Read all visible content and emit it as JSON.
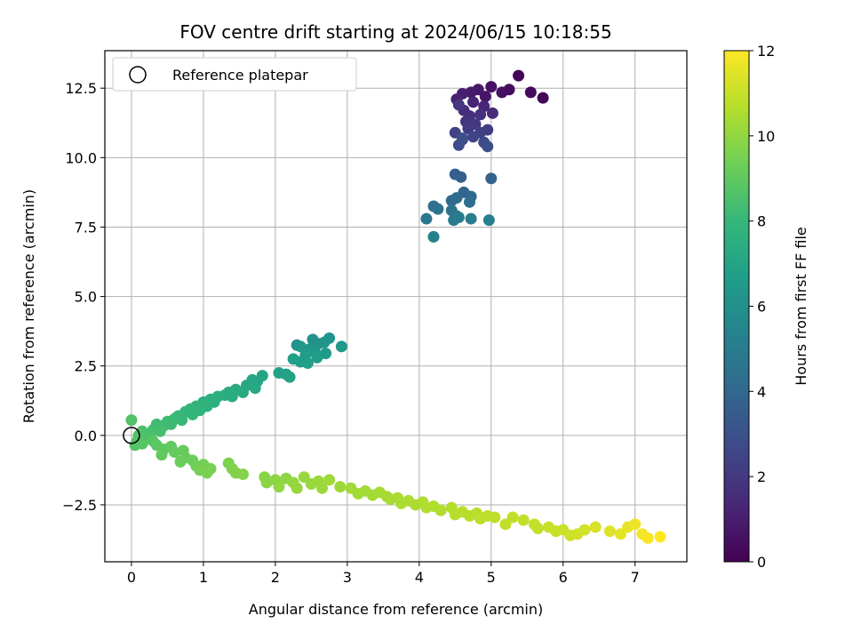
{
  "chart_data": {
    "type": "scatter",
    "title": "FOV centre drift starting at 2024/06/15 10:18:55",
    "xlabel": "Angular distance from reference (arcmin)",
    "ylabel": "Rotation from reference (arcmin)",
    "xlim": [
      -0.37,
      7.72
    ],
    "ylim": [
      -4.55,
      13.85
    ],
    "xticks": [
      0,
      1,
      2,
      3,
      4,
      5,
      6,
      7
    ],
    "xtick_labels": [
      "0",
      "1",
      "2",
      "3",
      "4",
      "5",
      "6",
      "7"
    ],
    "yticks": [
      -2.5,
      0.0,
      2.5,
      5.0,
      7.5,
      10.0,
      12.5
    ],
    "ytick_labels": [
      "−2.5",
      "0.0",
      "2.5",
      "5.0",
      "7.5",
      "10.0",
      "12.5"
    ],
    "grid": true,
    "legend": {
      "position": "top-left",
      "entries": [
        "Reference platepar"
      ]
    },
    "reference_point": {
      "x": 0.0,
      "y": 0.0
    },
    "colorbar": {
      "label": "Hours from first FF file",
      "range": [
        0,
        12
      ],
      "ticks": [
        0,
        2,
        4,
        6,
        8,
        10,
        12
      ],
      "tick_labels": [
        "0",
        "2",
        "4",
        "6",
        "8",
        "10",
        "12"
      ],
      "colormap": "viridis",
      "colors": [
        "#440154",
        "#482878",
        "#3e4989",
        "#31688e",
        "#26828e",
        "#1f9e89",
        "#35b779",
        "#6ece58",
        "#b5de2b",
        "#fde725"
      ]
    },
    "points": [
      [
        5.38,
        12.95,
        0.1
      ],
      [
        5.72,
        12.15,
        0.2
      ],
      [
        5.55,
        12.35,
        0.3
      ],
      [
        5.25,
        12.45,
        0.4
      ],
      [
        5.15,
        12.35,
        0.5
      ],
      [
        5.0,
        12.55,
        0.6
      ],
      [
        4.92,
        12.2,
        0.7
      ],
      [
        4.82,
        12.45,
        0.8
      ],
      [
        4.72,
        12.35,
        0.9
      ],
      [
        4.6,
        12.3,
        1.0
      ],
      [
        4.52,
        12.1,
        1.1
      ],
      [
        4.75,
        12.0,
        1.2
      ],
      [
        4.9,
        11.85,
        1.3
      ],
      [
        5.02,
        11.6,
        1.4
      ],
      [
        4.62,
        11.7,
        1.5
      ],
      [
        4.7,
        11.5,
        1.6
      ],
      [
        4.85,
        11.55,
        1.7
      ],
      [
        4.65,
        11.3,
        1.8
      ],
      [
        4.55,
        11.9,
        1.9
      ],
      [
        4.78,
        11.2,
        2.0
      ],
      [
        4.68,
        11.05,
        2.1
      ],
      [
        4.95,
        11.0,
        2.2
      ],
      [
        4.85,
        10.9,
        2.3
      ],
      [
        4.5,
        10.9,
        2.4
      ],
      [
        4.75,
        10.75,
        2.5
      ],
      [
        4.6,
        10.65,
        2.6
      ],
      [
        4.9,
        10.55,
        2.7
      ],
      [
        4.55,
        10.45,
        2.8
      ],
      [
        4.95,
        10.4,
        2.9
      ],
      [
        4.6,
        10.7,
        3.0
      ],
      [
        4.5,
        9.4,
        3.6
      ],
      [
        4.58,
        9.3,
        3.7
      ],
      [
        5.0,
        9.25,
        3.8
      ],
      [
        4.62,
        8.75,
        3.9
      ],
      [
        4.72,
        8.6,
        4.0
      ],
      [
        4.45,
        8.45,
        4.1
      ],
      [
        4.52,
        8.55,
        4.2
      ],
      [
        4.7,
        8.4,
        4.3
      ],
      [
        4.2,
        8.25,
        4.4
      ],
      [
        4.26,
        8.15,
        4.5
      ],
      [
        4.45,
        8.1,
        4.6
      ],
      [
        4.52,
        7.9,
        4.7
      ],
      [
        4.1,
        7.8,
        4.8
      ],
      [
        4.48,
        7.75,
        4.9
      ],
      [
        4.55,
        7.85,
        5.0
      ],
      [
        4.72,
        7.8,
        5.1
      ],
      [
        4.97,
        7.75,
        5.2
      ],
      [
        4.2,
        7.15,
        5.3
      ],
      [
        2.3,
        3.25,
        6.0
      ],
      [
        2.52,
        3.45,
        6.1
      ],
      [
        2.6,
        3.3,
        6.15
      ],
      [
        2.75,
        3.5,
        6.2
      ],
      [
        2.68,
        3.35,
        6.25
      ],
      [
        2.47,
        3.1,
        6.3
      ],
      [
        2.35,
        3.2,
        6.35
      ],
      [
        2.92,
        3.2,
        6.4
      ],
      [
        2.55,
        3.0,
        6.45
      ],
      [
        2.7,
        2.95,
        6.5
      ],
      [
        2.42,
        2.9,
        6.55
      ],
      [
        2.58,
        2.8,
        6.6
      ],
      [
        2.35,
        2.65,
        6.65
      ],
      [
        2.25,
        2.75,
        6.7
      ],
      [
        2.45,
        2.6,
        6.75
      ],
      [
        2.15,
        2.2,
        6.8
      ],
      [
        2.05,
        2.25,
        6.85
      ],
      [
        2.2,
        2.1,
        6.9
      ],
      [
        1.82,
        2.15,
        7.0
      ],
      [
        1.75,
        1.95,
        7.05
      ],
      [
        1.68,
        2.0,
        7.1
      ],
      [
        1.6,
        1.8,
        7.15
      ],
      [
        1.72,
        1.7,
        7.2
      ],
      [
        1.45,
        1.65,
        7.25
      ],
      [
        1.55,
        1.55,
        7.3
      ],
      [
        1.35,
        1.55,
        7.35
      ],
      [
        1.4,
        1.4,
        7.4
      ],
      [
        1.3,
        1.45,
        7.45
      ],
      [
        1.2,
        1.4,
        7.5
      ],
      [
        1.15,
        1.2,
        7.55
      ],
      [
        1.1,
        1.3,
        7.6
      ],
      [
        1.0,
        1.2,
        7.65
      ],
      [
        1.05,
        1.05,
        7.7
      ],
      [
        0.9,
        1.05,
        7.75
      ],
      [
        0.95,
        0.9,
        7.8
      ],
      [
        0.82,
        0.95,
        7.85
      ],
      [
        0.75,
        0.85,
        7.9
      ],
      [
        0.85,
        0.75,
        7.95
      ],
      [
        0.65,
        0.7,
        8.0
      ],
      [
        0.7,
        0.55,
        8.05
      ],
      [
        0.6,
        0.6,
        8.1
      ],
      [
        0.5,
        0.5,
        8.15
      ],
      [
        0.55,
        0.4,
        8.2
      ],
      [
        0.45,
        0.35,
        8.25
      ],
      [
        0.35,
        0.4,
        8.3
      ],
      [
        0.3,
        0.2,
        8.35
      ],
      [
        0.4,
        0.15,
        8.4
      ],
      [
        0.25,
        0.05,
        8.45
      ],
      [
        0.15,
        0.15,
        8.5
      ],
      [
        0.2,
        -0.05,
        8.55
      ],
      [
        0.1,
        0.0,
        8.6
      ],
      [
        0.0,
        0.55,
        8.65
      ],
      [
        0.08,
        -0.2,
        8.7
      ],
      [
        0.05,
        -0.35,
        8.75
      ],
      [
        0.15,
        -0.3,
        8.8
      ],
      [
        0.3,
        -0.2,
        8.85
      ],
      [
        0.35,
        -0.35,
        8.9
      ],
      [
        0.45,
        -0.5,
        8.95
      ],
      [
        0.55,
        -0.4,
        9.0
      ],
      [
        0.42,
        -0.7,
        9.05
      ],
      [
        0.6,
        -0.6,
        9.1
      ],
      [
        0.72,
        -0.55,
        9.15
      ],
      [
        0.75,
        -0.8,
        9.2
      ],
      [
        0.68,
        -0.95,
        9.25
      ],
      [
        0.85,
        -0.9,
        9.3
      ],
      [
        0.9,
        -1.1,
        9.35
      ],
      [
        1.0,
        -1.05,
        9.4
      ],
      [
        0.95,
        -1.25,
        9.45
      ],
      [
        1.1,
        -1.2,
        9.5
      ],
      [
        1.05,
        -1.35,
        9.55
      ],
      [
        1.35,
        -1.0,
        9.6
      ],
      [
        1.4,
        -1.2,
        9.65
      ],
      [
        1.45,
        -1.35,
        9.7
      ],
      [
        1.55,
        -1.4,
        9.75
      ],
      [
        1.85,
        -1.5,
        9.8
      ],
      [
        1.88,
        -1.7,
        9.85
      ],
      [
        2.0,
        -1.6,
        9.9
      ],
      [
        2.15,
        -1.55,
        9.95
      ],
      [
        2.05,
        -1.85,
        10.0
      ],
      [
        2.25,
        -1.7,
        10.05
      ],
      [
        2.3,
        -1.9,
        10.1
      ],
      [
        2.4,
        -1.5,
        10.12
      ],
      [
        2.5,
        -1.75,
        10.15
      ],
      [
        2.6,
        -1.65,
        10.18
      ],
      [
        2.65,
        -1.9,
        10.2
      ],
      [
        2.75,
        -1.6,
        10.22
      ],
      [
        2.9,
        -1.85,
        10.25
      ],
      [
        3.05,
        -1.9,
        10.28
      ],
      [
        3.15,
        -2.1,
        10.3
      ],
      [
        3.25,
        -2.0,
        10.32
      ],
      [
        3.35,
        -2.15,
        10.35
      ],
      [
        3.45,
        -2.05,
        10.38
      ],
      [
        3.55,
        -2.2,
        10.4
      ],
      [
        3.6,
        -2.3,
        10.42
      ],
      [
        3.7,
        -2.25,
        10.45
      ],
      [
        3.75,
        -2.45,
        10.48
      ],
      [
        3.85,
        -2.35,
        10.5
      ],
      [
        3.95,
        -2.5,
        10.52
      ],
      [
        4.05,
        -2.4,
        10.55
      ],
      [
        4.1,
        -2.6,
        10.58
      ],
      [
        4.2,
        -2.55,
        10.6
      ],
      [
        4.3,
        -2.7,
        10.62
      ],
      [
        4.45,
        -2.6,
        10.65
      ],
      [
        4.5,
        -2.85,
        10.68
      ],
      [
        4.6,
        -2.75,
        10.7
      ],
      [
        4.7,
        -2.9,
        10.72
      ],
      [
        4.8,
        -2.8,
        10.75
      ],
      [
        4.85,
        -3.0,
        10.78
      ],
      [
        4.95,
        -2.9,
        10.8
      ],
      [
        5.05,
        -2.95,
        10.82
      ],
      [
        5.2,
        -3.2,
        10.85
      ],
      [
        5.3,
        -2.95,
        10.88
      ],
      [
        5.45,
        -3.05,
        10.9
      ],
      [
        5.6,
        -3.2,
        10.92
      ],
      [
        5.65,
        -3.35,
        10.95
      ],
      [
        5.8,
        -3.3,
        10.98
      ],
      [
        5.9,
        -3.45,
        11.0
      ],
      [
        6.0,
        -3.4,
        11.05
      ],
      [
        6.1,
        -3.6,
        11.1
      ],
      [
        6.2,
        -3.55,
        11.15
      ],
      [
        6.3,
        -3.4,
        11.2
      ],
      [
        6.45,
        -3.3,
        11.3
      ],
      [
        6.65,
        -3.45,
        11.4
      ],
      [
        6.8,
        -3.55,
        11.5
      ],
      [
        6.9,
        -3.3,
        11.6
      ],
      [
        7.0,
        -3.2,
        11.7
      ],
      [
        7.1,
        -3.55,
        11.8
      ],
      [
        7.18,
        -3.7,
        11.9
      ],
      [
        7.35,
        -3.65,
        12.0
      ]
    ]
  }
}
